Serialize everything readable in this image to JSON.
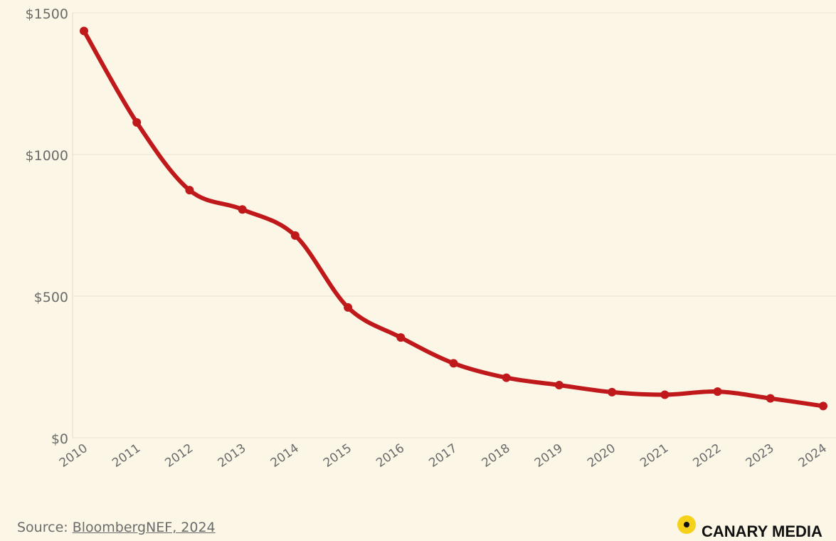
{
  "chart_data": {
    "type": "line",
    "categories": [
      "2010",
      "2011",
      "2012",
      "2013",
      "2014",
      "2015",
      "2016",
      "2017",
      "2018",
      "2019",
      "2020",
      "2021",
      "2022",
      "2023",
      "2024"
    ],
    "series": [
      {
        "values": [
          1436,
          1113,
          874,
          806,
          714,
          460,
          354,
          263,
          212,
          186,
          161,
          152,
          163,
          139,
          112
        ]
      }
    ],
    "yticks": [
      0,
      500,
      1000,
      1500
    ],
    "ytick_labels": [
      "$0",
      "$500",
      "$1000",
      "$1500"
    ],
    "ylim": [
      0,
      1500
    ],
    "grid": true,
    "title": "",
    "xlabel": "",
    "ylabel": "",
    "line_color": "#c0191c",
    "grid_color": "#efe9d6",
    "background_color": "#fbf6e6"
  },
  "footer": {
    "source_prefix": "Source: ",
    "source_link": "BloombergNEF, 2024"
  },
  "brand": {
    "icon": "canary-dot-icon",
    "name": "CANARY MEDIA"
  }
}
